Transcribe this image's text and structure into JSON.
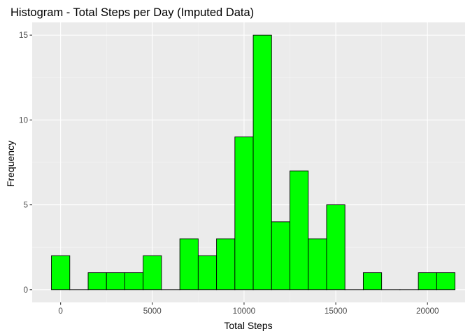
{
  "chart_data": {
    "type": "bar",
    "title": "Histogram - Total Steps per Day (Imputed Data)",
    "xlabel": "Total Steps",
    "ylabel": "Frequency",
    "bin_width": 1000,
    "bins": [
      {
        "center": 0,
        "count": 2
      },
      {
        "center": 1000,
        "count": 0
      },
      {
        "center": 2000,
        "count": 1
      },
      {
        "center": 3000,
        "count": 1
      },
      {
        "center": 4000,
        "count": 1
      },
      {
        "center": 5000,
        "count": 2
      },
      {
        "center": 6000,
        "count": 0
      },
      {
        "center": 7000,
        "count": 3
      },
      {
        "center": 8000,
        "count": 2
      },
      {
        "center": 9000,
        "count": 3
      },
      {
        "center": 10000,
        "count": 9
      },
      {
        "center": 11000,
        "count": 15
      },
      {
        "center": 12000,
        "count": 4
      },
      {
        "center": 13000,
        "count": 7
      },
      {
        "center": 14000,
        "count": 3
      },
      {
        "center": 15000,
        "count": 5
      },
      {
        "center": 16000,
        "count": 0
      },
      {
        "center": 17000,
        "count": 1
      },
      {
        "center": 18000,
        "count": 0
      },
      {
        "center": 19000,
        "count": 0
      },
      {
        "center": 20000,
        "count": 1
      },
      {
        "center": 21000,
        "count": 1
      }
    ],
    "xlim": [
      -1550,
      22050
    ],
    "ylim": [
      -0.75,
      15.75
    ],
    "x_ticks": [
      0,
      5000,
      10000,
      15000,
      20000
    ],
    "y_ticks": [
      0,
      5,
      10,
      15
    ],
    "grid": true,
    "colors": {
      "fill": "#00ff00",
      "outline": "#000000",
      "panel": "#ebebeb",
      "grid_major": "#ffffff",
      "grid_minor": "#f5f5f5"
    }
  }
}
